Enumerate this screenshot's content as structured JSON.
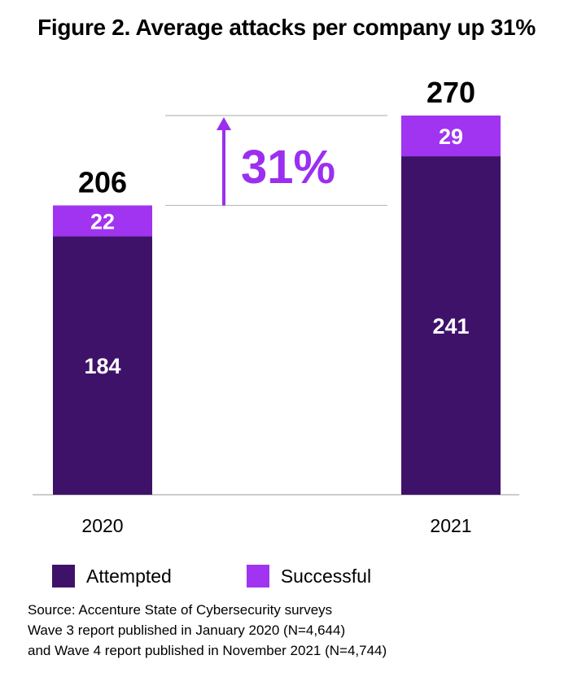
{
  "colors": {
    "attempted": "#3f1269",
    "successful": "#a034f0",
    "accent": "#9b2ff0",
    "axis": "#bbbbbb"
  },
  "chart_data": {
    "type": "bar",
    "stacked": true,
    "title": "Figure 2. Average attacks per company up 31%",
    "categories": [
      "2020",
      "2021"
    ],
    "series": [
      {
        "name": "Attempted",
        "values": [
          184,
          241
        ]
      },
      {
        "name": "Successful",
        "values": [
          22,
          29
        ]
      }
    ],
    "totals": [
      "206",
      "270"
    ],
    "annotation": "31%",
    "ylim": [
      0,
      270
    ],
    "grid": false,
    "legend_position": "bottom-left"
  },
  "source": {
    "lines": [
      "Source: Accenture State of Cybersecurity surveys",
      "Wave 3 report published in January 2020 (N=4,644)",
      "and Wave 4 report published in November 2021 (N=4,744)"
    ]
  }
}
